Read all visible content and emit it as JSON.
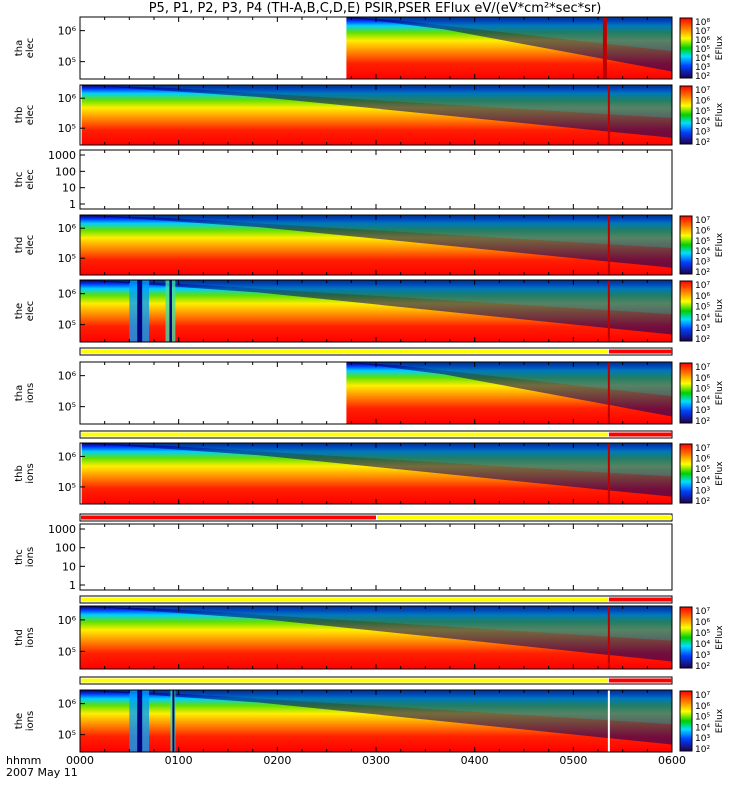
{
  "title": "P5, P1, P2, P3, P4 (TH-A,B,C,D,E) PSIR,PSER EFlux eV/(eV*cm²*sec*sr)",
  "footer": {
    "line1": "hhmm",
    "line2": "2007 May 11"
  },
  "chart_data": {
    "type": "heatmap",
    "x_axis": {
      "label": "hhmm",
      "range": [
        "0000",
        "0600"
      ],
      "ticks": [
        "0000",
        "0100",
        "0200",
        "0300",
        "0400",
        "0500",
        "0600"
      ]
    },
    "z_unit": "EFlux",
    "panels": [
      {
        "id": "tha-elec",
        "label": [
          "tha",
          "elec"
        ],
        "yticks": [
          "10⁶",
          "10⁵"
        ],
        "zticks": [
          "10⁸",
          "10⁷",
          "10⁶",
          "10⁵",
          "10⁴",
          "10³",
          "10²"
        ],
        "data_start_hhmm": "0242",
        "spike_hhmm": "0518",
        "bar": null
      },
      {
        "id": "thb-elec",
        "label": [
          "thb",
          "elec"
        ],
        "yticks": [
          "10⁶",
          "10⁵"
        ],
        "zticks": [
          "10⁷",
          "10⁶",
          "10⁵",
          "10⁴",
          "10³",
          "10²"
        ],
        "data_start_hhmm": "0001",
        "spike_hhmm": "0521",
        "bar": null
      },
      {
        "id": "thc-elec",
        "label": [
          "thc",
          "elec"
        ],
        "yticks": [
          "1000",
          "100",
          "10",
          "1"
        ],
        "zticks": [],
        "data_start_hhmm": null,
        "bar": null
      },
      {
        "id": "thd-elec",
        "label": [
          "thd",
          "elec"
        ],
        "yticks": [
          "10⁶",
          "10⁵"
        ],
        "zticks": [
          "10⁷",
          "10⁶",
          "10⁵",
          "10⁴",
          "10³",
          "10²"
        ],
        "data_start_hhmm": "0000",
        "spike_hhmm": "0521",
        "bar": null
      },
      {
        "id": "the-elec",
        "label": [
          "the",
          "elec"
        ],
        "yticks": [
          "10⁶",
          "10⁵"
        ],
        "zticks": [
          "10⁷",
          "10⁶",
          "10⁵",
          "10⁴",
          "10³",
          "10²"
        ],
        "data_start_hhmm": "0000",
        "spike_hhmm": "0521",
        "gaps_hhmm": [
          [
            "0030",
            "0042"
          ],
          [
            "0052",
            "0058"
          ]
        ],
        "bar": {
          "segments": [
            {
              "from": "0000",
              "to": "0521",
              "color": "#ffff00"
            },
            {
              "from": "0521",
              "to": "0600",
              "color": "#ff0000"
            }
          ]
        }
      },
      {
        "id": "tha-ions",
        "label": [
          "tha",
          "ions"
        ],
        "yticks": [
          "10⁶",
          "10⁵"
        ],
        "zticks": [
          "10⁷",
          "10⁶",
          "10⁵",
          "10⁴",
          "10³",
          "10²"
        ],
        "data_start_hhmm": "0242",
        "spike_hhmm": "0521",
        "bar": {
          "segments": [
            {
              "from": "0000",
              "to": "0521",
              "color": "#ffff00"
            },
            {
              "from": "0521",
              "to": "0600",
              "color": "#ff0000"
            }
          ]
        }
      },
      {
        "id": "thb-ions",
        "label": [
          "thb",
          "ions"
        ],
        "yticks": [
          "10⁶",
          "10⁵"
        ],
        "zticks": [
          "10⁷",
          "10⁶",
          "10⁵",
          "10⁴",
          "10³",
          "10²"
        ],
        "data_start_hhmm": "0001",
        "spike_hhmm": "0521",
        "bar": {
          "segments": [
            {
              "from": "0000",
              "to": "0300",
              "color": "#ff0000"
            },
            {
              "from": "0300",
              "to": "0600",
              "color": "#ffff00"
            }
          ]
        }
      },
      {
        "id": "thc-ions",
        "label": [
          "thc",
          "ions"
        ],
        "yticks": [
          "1000",
          "100",
          "10",
          "1"
        ],
        "zticks": [],
        "data_start_hhmm": null,
        "bar": {
          "segments": [
            {
              "from": "0000",
              "to": "0521",
              "color": "#ffff00"
            },
            {
              "from": "0521",
              "to": "0600",
              "color": "#ff0000"
            }
          ]
        }
      },
      {
        "id": "thd-ions",
        "label": [
          "thd",
          "ions"
        ],
        "yticks": [
          "10⁶",
          "10⁵"
        ],
        "zticks": [
          "10⁷",
          "10⁶",
          "10⁵",
          "10⁴",
          "10³",
          "10²"
        ],
        "data_start_hhmm": "0000",
        "spike_hhmm": "0521",
        "bar": {
          "segments": [
            {
              "from": "0000",
              "to": "0521",
              "color": "#ffff00"
            },
            {
              "from": "0521",
              "to": "0600",
              "color": "#ff0000"
            }
          ]
        }
      },
      {
        "id": "the-ions",
        "label": [
          "the",
          "ions"
        ],
        "yticks": [
          "10⁶",
          "10⁵"
        ],
        "zticks": [
          "10⁷",
          "10⁶",
          "10⁵",
          "10⁴",
          "10³",
          "10²"
        ],
        "data_start_hhmm": "0000",
        "spike_hhmm": "0521",
        "gaps_hhmm": [
          [
            "0030",
            "0042"
          ],
          [
            "0055",
            "0058"
          ]
        ],
        "bar": null
      }
    ]
  }
}
